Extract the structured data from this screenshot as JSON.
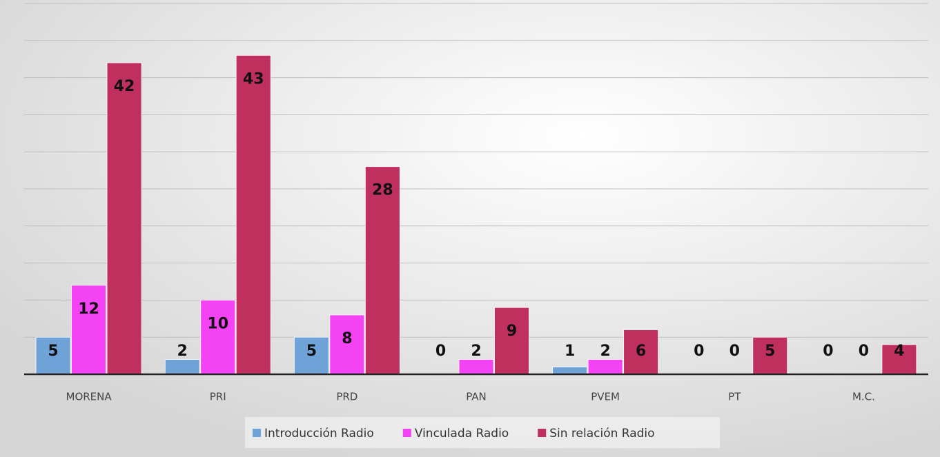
{
  "chart_data": {
    "type": "bar",
    "categories": [
      "MORENA",
      "PRI",
      "PRD",
      "PAN",
      "PVEM",
      "PT",
      "M.C."
    ],
    "series": [
      {
        "name": "Introducción Radio",
        "color": "#6fa3d8",
        "values": [
          5,
          2,
          5,
          0,
          1,
          0,
          0
        ]
      },
      {
        "name": "Vinculada Radio",
        "color": "#f443f4",
        "values": [
          12,
          10,
          8,
          2,
          2,
          0,
          0
        ]
      },
      {
        "name": "Sin relación Radio",
        "color": "#c0305f",
        "values": [
          42,
          43,
          28,
          9,
          6,
          5,
          4
        ]
      }
    ],
    "ylim": [
      0,
      50
    ],
    "yticks": [
      0,
      5,
      10,
      15,
      20,
      25,
      30,
      35,
      40,
      45,
      50
    ],
    "grid": true
  }
}
